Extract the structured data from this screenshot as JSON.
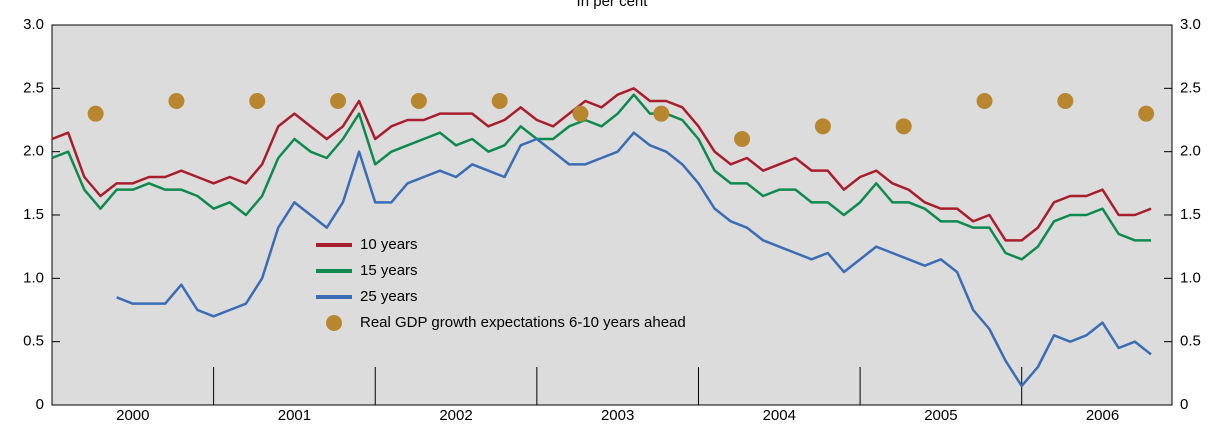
{
  "chart_data": {
    "type": "line",
    "subtitle": "In per cent",
    "xlim": [
      2000,
      2006.93
    ],
    "xticks": [
      {
        "value": 2000.5,
        "label": "2000"
      },
      {
        "value": 2001.5,
        "label": "2001"
      },
      {
        "value": 2002.5,
        "label": "2002"
      },
      {
        "value": 2003.5,
        "label": "2003"
      },
      {
        "value": 2004.5,
        "label": "2004"
      },
      {
        "value": 2005.5,
        "label": "2005"
      },
      {
        "value": 2006.5,
        "label": "2006"
      }
    ],
    "xminorticks": [
      2001,
      2002,
      2003,
      2004,
      2005,
      2006
    ],
    "ylim": [
      0,
      3
    ],
    "yticks": [
      0,
      {
        "value": 0.5,
        "label": "0.5"
      },
      {
        "value": 1,
        "label": "1.0"
      },
      {
        "value": 1.5,
        "label": "1.5"
      },
      {
        "value": 2,
        "label": "2.0"
      },
      {
        "value": 2.5,
        "label": "2.5"
      },
      {
        "value": 3,
        "label": "3.0"
      }
    ],
    "x": [
      2000.0,
      2000.1,
      2000.2,
      2000.3,
      2000.4,
      2000.5,
      2000.6,
      2000.7,
      2000.8,
      2000.9,
      2001.0,
      2001.1,
      2001.2,
      2001.3,
      2001.4,
      2001.5,
      2001.6,
      2001.7,
      2001.8,
      2001.9,
      2002.0,
      2002.1,
      2002.2,
      2002.3,
      2002.4,
      2002.5,
      2002.6,
      2002.7,
      2002.8,
      2002.9,
      2003.0,
      2003.1,
      2003.2,
      2003.3,
      2003.4,
      2003.5,
      2003.6,
      2003.7,
      2003.8,
      2003.9,
      2004.0,
      2004.1,
      2004.2,
      2004.3,
      2004.4,
      2004.5,
      2004.6,
      2004.7,
      2004.8,
      2004.9,
      2005.0,
      2005.1,
      2005.2,
      2005.3,
      2005.4,
      2005.5,
      2005.6,
      2005.7,
      2005.8,
      2005.9,
      2006.0,
      2006.1,
      2006.2,
      2006.3,
      2006.4,
      2006.5,
      2006.6,
      2006.7,
      2006.8
    ],
    "series": [
      {
        "name": "10 years",
        "color": "#a91e2c",
        "values": [
          2.1,
          2.15,
          1.8,
          1.65,
          1.75,
          1.75,
          1.8,
          1.8,
          1.85,
          1.8,
          1.75,
          1.8,
          1.75,
          1.9,
          2.2,
          2.3,
          2.2,
          2.1,
          2.2,
          2.4,
          2.1,
          2.2,
          2.25,
          2.25,
          2.3,
          2.3,
          2.3,
          2.2,
          2.25,
          2.35,
          2.25,
          2.2,
          2.3,
          2.4,
          2.35,
          2.45,
          2.5,
          2.4,
          2.4,
          2.35,
          2.2,
          2.0,
          1.9,
          1.95,
          1.85,
          1.9,
          1.95,
          1.85,
          1.85,
          1.7,
          1.8,
          1.85,
          1.75,
          1.7,
          1.6,
          1.55,
          1.55,
          1.45,
          1.5,
          1.3,
          1.3,
          1.4,
          1.6,
          1.65,
          1.65,
          1.7,
          1.5,
          1.5,
          1.55
        ]
      },
      {
        "name": "15 years",
        "color": "#0f8a4f",
        "values": [
          1.95,
          2.0,
          1.7,
          1.55,
          1.7,
          1.7,
          1.75,
          1.7,
          1.7,
          1.65,
          1.55,
          1.6,
          1.5,
          1.65,
          1.95,
          2.1,
          2.0,
          1.95,
          2.1,
          2.3,
          1.9,
          2.0,
          2.05,
          2.1,
          2.15,
          2.05,
          2.1,
          2.0,
          2.05,
          2.2,
          2.1,
          2.1,
          2.2,
          2.25,
          2.2,
          2.3,
          2.45,
          2.3,
          2.3,
          2.25,
          2.1,
          1.85,
          1.75,
          1.75,
          1.65,
          1.7,
          1.7,
          1.6,
          1.6,
          1.5,
          1.6,
          1.75,
          1.6,
          1.6,
          1.55,
          1.45,
          1.45,
          1.4,
          1.4,
          1.2,
          1.15,
          1.25,
          1.45,
          1.5,
          1.5,
          1.55,
          1.35,
          1.3,
          1.3
        ]
      },
      {
        "name": "25 years",
        "color": "#3a6db5",
        "values": [
          null,
          null,
          null,
          null,
          0.85,
          0.8,
          0.8,
          0.8,
          0.95,
          0.75,
          0.7,
          0.75,
          0.8,
          1.0,
          1.4,
          1.6,
          1.5,
          1.4,
          1.6,
          2.0,
          1.6,
          1.6,
          1.75,
          1.8,
          1.85,
          1.8,
          1.9,
          1.85,
          1.8,
          2.05,
          2.1,
          2.0,
          1.9,
          1.9,
          1.95,
          2.0,
          2.15,
          2.05,
          2.0,
          1.9,
          1.75,
          1.55,
          1.45,
          1.4,
          1.3,
          1.25,
          1.2,
          1.15,
          1.2,
          1.05,
          1.15,
          1.25,
          1.2,
          1.15,
          1.1,
          1.15,
          1.05,
          0.75,
          0.6,
          0.35,
          0.15,
          0.3,
          0.55,
          0.5,
          0.55,
          0.65,
          0.45,
          0.5,
          0.4
        ]
      }
    ],
    "points": {
      "name": "Real GDP growth expectations 6-10 years ahead",
      "color": "#b8862e",
      "x": [
        2000.27,
        2000.77,
        2001.27,
        2001.77,
        2002.27,
        2002.77,
        2003.27,
        2003.77,
        2004.27,
        2004.77,
        2005.27,
        2005.77,
        2006.27,
        2006.77
      ],
      "values": [
        2.3,
        2.4,
        2.4,
        2.4,
        2.4,
        2.4,
        2.3,
        2.3,
        2.1,
        2.2,
        2.2,
        2.4,
        2.4,
        2.3
      ]
    }
  }
}
